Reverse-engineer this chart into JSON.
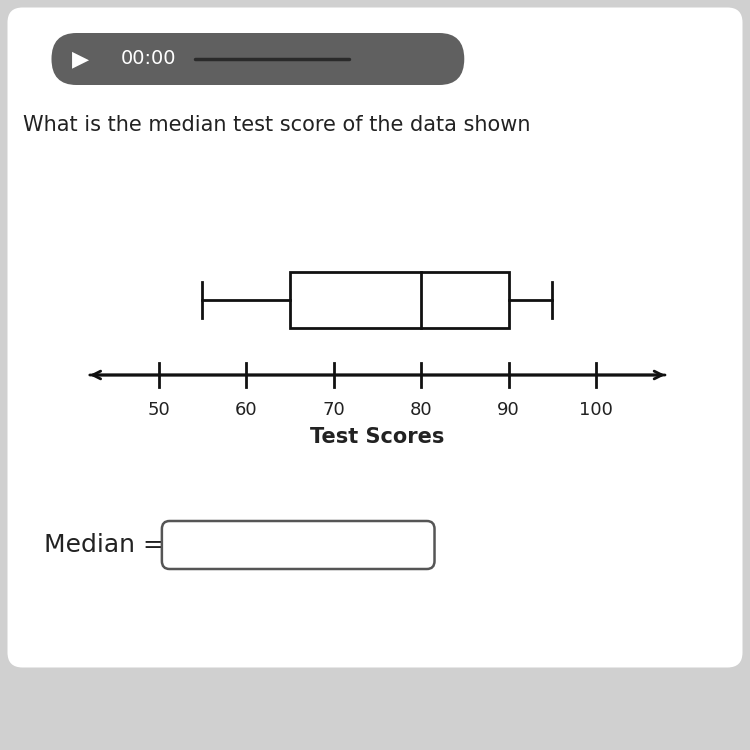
{
  "whisker_low": 55,
  "q1": 65,
  "median": 80,
  "q3": 90,
  "whisker_high": 95,
  "xmin": 44,
  "xmax": 106,
  "xticks": [
    50,
    60,
    70,
    80,
    90,
    100
  ],
  "xlabel": "Test Scores",
  "background_color": "#ffffff",
  "outer_bg": "#d0d0d0",
  "card_color": "#ffffff",
  "media_bar_color": "#606060",
  "media_bar_text": "00:00",
  "question_text": "What is the median test score of the data shown",
  "median_label": "Median =",
  "text_color": "#222222",
  "line_color": "#111111",
  "line_width": 2.0
}
